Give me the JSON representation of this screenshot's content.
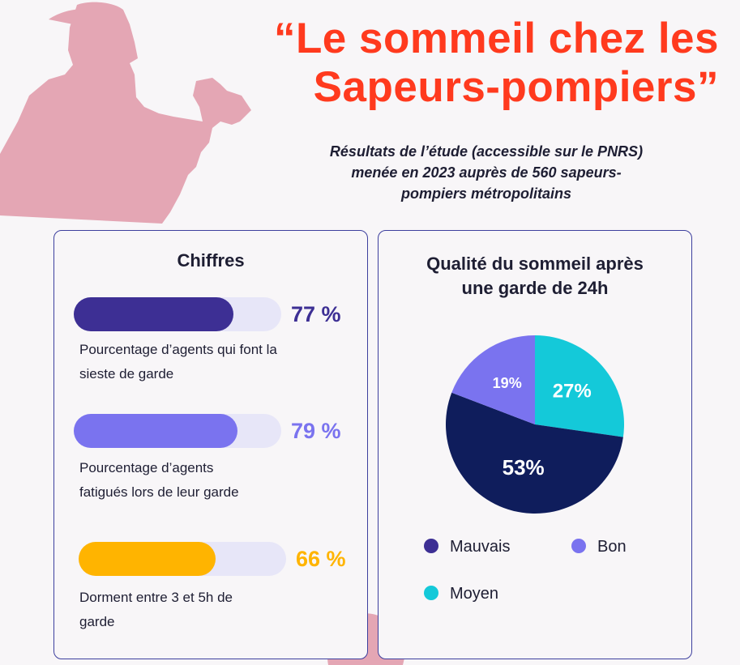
{
  "header": {
    "title_line1": "“Le sommeil chez les",
    "title_line2": "Sapeurs-pompiers”",
    "subtitle_line1": "Résultats de l’étude (accessible sur le PNRS)",
    "subtitle_line2": "menée en 2023 auprès de 560 sapeurs-",
    "subtitle_line3": "pompiers métropolitains"
  },
  "left_card": {
    "title": "Chiffres",
    "stats": [
      {
        "value": 77,
        "label": "77 %",
        "desc_line1": "Pourcentage d’agents qui font la",
        "desc_line2": "sieste de garde",
        "color": "#3d2f94"
      },
      {
        "value": 79,
        "label": "79 %",
        "desc_line1": "Pourcentage d’agents",
        "desc_line2": "fatigués lors de leur garde",
        "color": "#7a73ef"
      },
      {
        "value": 66,
        "label": "66 %",
        "desc_line1": "Dorment entre 3 et 5h de",
        "desc_line2": "garde",
        "color": "#ffb400"
      }
    ]
  },
  "chart_data": {
    "type": "pie",
    "title": "Qualité du sommeil après une garde de 24h",
    "title_line1": "Qualité du sommeil après",
    "title_line2": "une garde de 24h",
    "slices": [
      {
        "name": "Moyen",
        "value": 27,
        "label": "27%",
        "color": "#14c9d9"
      },
      {
        "name": "Mauvais",
        "value": 53,
        "label": "53%",
        "color": "#0f1d5c"
      },
      {
        "name": "Bon",
        "value": 19,
        "label": "19%",
        "color": "#7a73ef"
      }
    ],
    "legend": [
      {
        "name": "Mauvais",
        "color": "#3d2f94"
      },
      {
        "name": "Bon",
        "color": "#7a73ef"
      },
      {
        "name": "Moyen",
        "color": "#14c9d9"
      }
    ]
  }
}
